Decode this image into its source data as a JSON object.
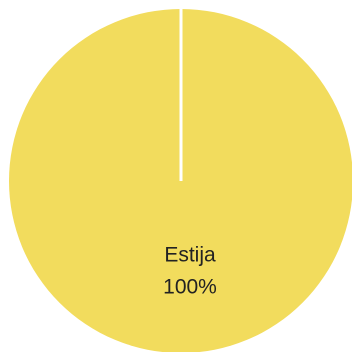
{
  "chart_data": {
    "type": "pie",
    "categories": [
      "Estija"
    ],
    "values": [
      100
    ],
    "value_labels": [
      "100%"
    ],
    "colors": [
      "#f2dc5d"
    ]
  }
}
